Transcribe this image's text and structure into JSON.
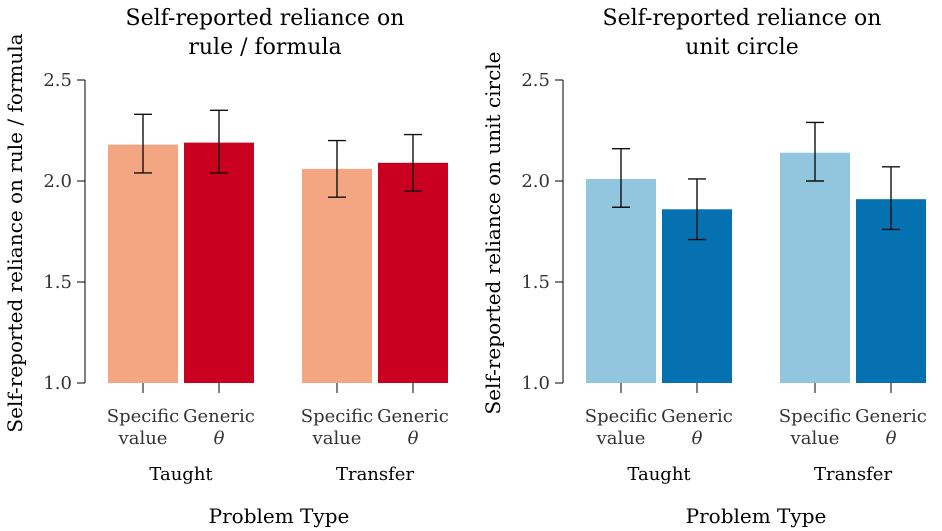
{
  "chart_data": [
    {
      "type": "bar",
      "title_lines": [
        "Self-reported reliance on",
        "rule / formula"
      ],
      "ylabel": "Self-reported reliance on rule / formula",
      "xlabel": "Problem Type",
      "ylim": [
        1.0,
        2.5
      ],
      "yticks": [
        "1.0",
        "1.5",
        "2.0",
        "2.5"
      ],
      "groups": [
        "Taught",
        "Transfer"
      ],
      "categories": [
        {
          "line1": "Specific",
          "line2": "value"
        },
        {
          "line1": "Generic",
          "line2": "θ"
        }
      ],
      "colors": [
        "#f4a582",
        "#ca0020"
      ],
      "bars": [
        {
          "group": "Taught",
          "category": "Specific value",
          "value": 2.18,
          "err_low": 2.04,
          "err_high": 2.33
        },
        {
          "group": "Taught",
          "category": "Generic θ",
          "value": 2.19,
          "err_low": 2.04,
          "err_high": 2.35
        },
        {
          "group": "Transfer",
          "category": "Specific value",
          "value": 2.06,
          "err_low": 1.92,
          "err_high": 2.2
        },
        {
          "group": "Transfer",
          "category": "Generic θ",
          "value": 2.09,
          "err_low": 1.95,
          "err_high": 2.23
        }
      ]
    },
    {
      "type": "bar",
      "title_lines": [
        "Self-reported reliance on",
        "unit circle"
      ],
      "ylabel": "Self-reported reliance on unit circle",
      "xlabel": "Problem Type",
      "ylim": [
        1.0,
        2.5
      ],
      "yticks": [
        "1.0",
        "1.5",
        "2.0",
        "2.5"
      ],
      "groups": [
        "Taught",
        "Transfer"
      ],
      "categories": [
        {
          "line1": "Specific",
          "line2": "value"
        },
        {
          "line1": "Generic",
          "line2": "θ"
        }
      ],
      "colors": [
        "#92c5de",
        "#0571b0"
      ],
      "bars": [
        {
          "group": "Taught",
          "category": "Specific value",
          "value": 2.01,
          "err_low": 1.87,
          "err_high": 2.16
        },
        {
          "group": "Taught",
          "category": "Generic θ",
          "value": 1.86,
          "err_low": 1.71,
          "err_high": 2.01
        },
        {
          "group": "Transfer",
          "category": "Specific value",
          "value": 2.14,
          "err_low": 2.0,
          "err_high": 2.29
        },
        {
          "group": "Transfer",
          "category": "Generic θ",
          "value": 1.91,
          "err_low": 1.76,
          "err_high": 2.07
        }
      ]
    }
  ]
}
